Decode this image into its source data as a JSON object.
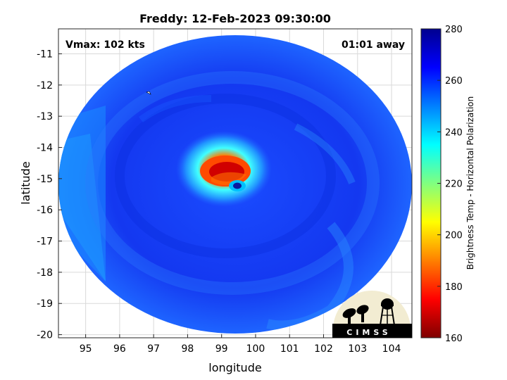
{
  "header": {
    "title": "Freddy: 12-Feb-2023 09:30:00"
  },
  "overlays": {
    "vmax": "Vmax: 102 kts",
    "time_away": "01:01 away"
  },
  "axes": {
    "xlabel": "longitude",
    "ylabel": "latitude",
    "xticks": [
      "95",
      "96",
      "97",
      "98",
      "99",
      "100",
      "101",
      "102",
      "103",
      "104"
    ],
    "yticks": [
      "-11",
      "-12",
      "-13",
      "-14",
      "-15",
      "-16",
      "-17",
      "-18",
      "-19",
      "-20"
    ],
    "xlim": [
      94.2,
      104.6
    ],
    "ylim": [
      -20.1,
      -10.2
    ]
  },
  "colorbar": {
    "label": "Brightness Temp - Horizontal Polarization",
    "ticks": [
      "280",
      "260",
      "240",
      "220",
      "200",
      "180",
      "160"
    ],
    "range": [
      160,
      280
    ],
    "colors": [
      "#7f0000",
      "#ff0000",
      "#ff8000",
      "#ffff00",
      "#80ff80",
      "#00ffff",
      "#0080ff",
      "#0000ff",
      "#00008f"
    ]
  },
  "storm": {
    "name": "Freddy",
    "center_lon": 99.4,
    "center_lat": -15.1,
    "eye_lon": 99.45,
    "eye_lat": -15.15
  },
  "logo": {
    "text": "CIMSS"
  }
}
